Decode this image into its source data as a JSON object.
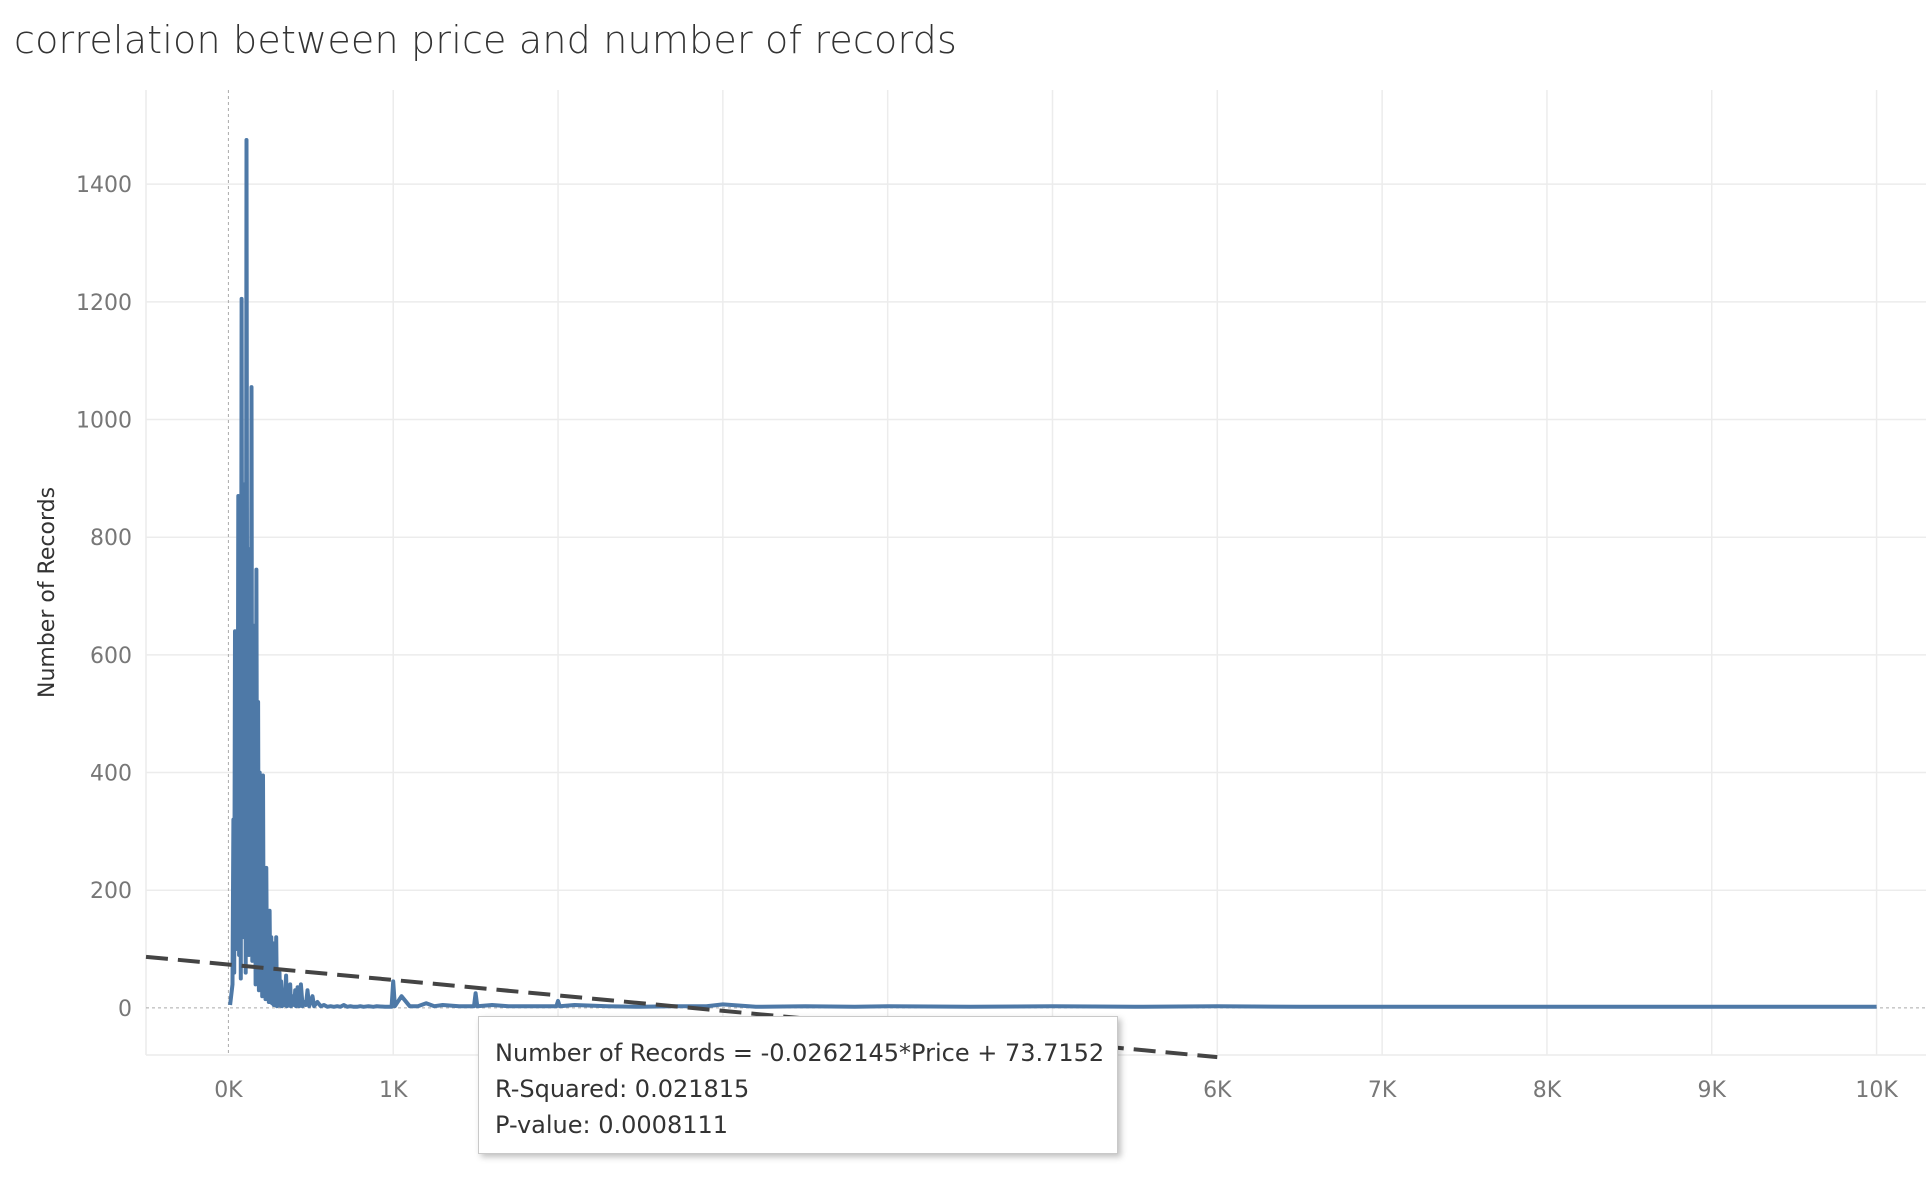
{
  "title": "correlation between price and number of records",
  "tooltip": {
    "line1": "Number of Records = -0.0262145*Price + 73.7152",
    "line2": "R-Squared: 0.021815",
    "line3": "P-value: 0.0008111"
  },
  "chart_data": {
    "type": "line",
    "title": "correlation between price and number of records",
    "xlabel": "",
    "ylabel": "Number of Records",
    "xlim": [
      -500,
      10300
    ],
    "ylim": [
      -80,
      1560
    ],
    "x_ticks": [
      0,
      1000,
      2000,
      3000,
      4000,
      5000,
      6000,
      7000,
      8000,
      9000,
      10000
    ],
    "x_tick_labels": [
      "0K",
      "1K",
      "",
      "",
      "",
      "",
      "6K",
      "7K",
      "8K",
      "9K",
      "10K"
    ],
    "y_ticks": [
      0,
      200,
      400,
      600,
      800,
      1000,
      1200,
      1400
    ],
    "y_tick_labels": [
      "0",
      "200",
      "400",
      "600",
      "800",
      "1000",
      "1200",
      "1400"
    ],
    "grid": true,
    "series": [
      {
        "color": "#4e79a7",
        "x": [
          10,
          25,
          30,
          35,
          40,
          45,
          50,
          55,
          60,
          65,
          70,
          75,
          80,
          85,
          90,
          95,
          100,
          105,
          110,
          115,
          120,
          125,
          130,
          135,
          140,
          145,
          150,
          155,
          160,
          165,
          170,
          175,
          180,
          185,
          190,
          195,
          200,
          205,
          210,
          215,
          220,
          225,
          230,
          235,
          240,
          245,
          250,
          255,
          260,
          265,
          270,
          275,
          280,
          285,
          290,
          295,
          300,
          305,
          310,
          315,
          320,
          325,
          330,
          340,
          350,
          355,
          360,
          370,
          375,
          380,
          390,
          400,
          405,
          410,
          420,
          430,
          440,
          450,
          460,
          470,
          480,
          490,
          500,
          510,
          520,
          540,
          560,
          580,
          600,
          620,
          640,
          660,
          680,
          700,
          720,
          740,
          760,
          780,
          800,
          820,
          850,
          880,
          900,
          950,
          990,
          1000,
          1010,
          1050,
          1100,
          1150,
          1200,
          1250,
          1300,
          1400,
          1490,
          1500,
          1510,
          1600,
          1700,
          1800,
          1900,
          1990,
          2000,
          2010,
          2100,
          2200,
          2300,
          2500,
          2700,
          2900,
          3000,
          3200,
          3500,
          3800,
          4000,
          4500,
          5000,
          5500,
          6000,
          6500,
          7000,
          7500,
          8000,
          8500,
          9000,
          9500,
          10000
        ],
        "y": [
          5,
          40,
          320,
          60,
          640,
          100,
          450,
          150,
          870,
          90,
          600,
          50,
          1205,
          180,
          860,
          120,
          890,
          60,
          1475,
          200,
          780,
          90,
          700,
          150,
          1055,
          80,
          650,
          120,
          500,
          40,
          745,
          60,
          520,
          30,
          400,
          80,
          300,
          20,
          395,
          30,
          200,
          15,
          238,
          20,
          150,
          10,
          165,
          10,
          120,
          8,
          110,
          5,
          80,
          5,
          120,
          3,
          40,
          5,
          60,
          4,
          45,
          3,
          20,
          5,
          55,
          3,
          30,
          4,
          40,
          3,
          20,
          5,
          30,
          3,
          35,
          3,
          40,
          3,
          10,
          5,
          30,
          3,
          10,
          20,
          3,
          10,
          3,
          5,
          2,
          3,
          2,
          3,
          2,
          5,
          2,
          3,
          2,
          2,
          3,
          2,
          3,
          2,
          3,
          2,
          2,
          45,
          3,
          20,
          3,
          3,
          8,
          3,
          5,
          3,
          3,
          25,
          3,
          5,
          3,
          3,
          3,
          3,
          12,
          3,
          5,
          4,
          3,
          2,
          3,
          3,
          6,
          2,
          3,
          2,
          3,
          2,
          3,
          2,
          3,
          2,
          2,
          2,
          2,
          2,
          2,
          2,
          2
        ]
      }
    ],
    "trend_line": {
      "slope": -0.0262145,
      "intercept": 73.7152,
      "x_range": [
        -500,
        6000
      ],
      "style": "dashed",
      "color": "#444444"
    }
  }
}
